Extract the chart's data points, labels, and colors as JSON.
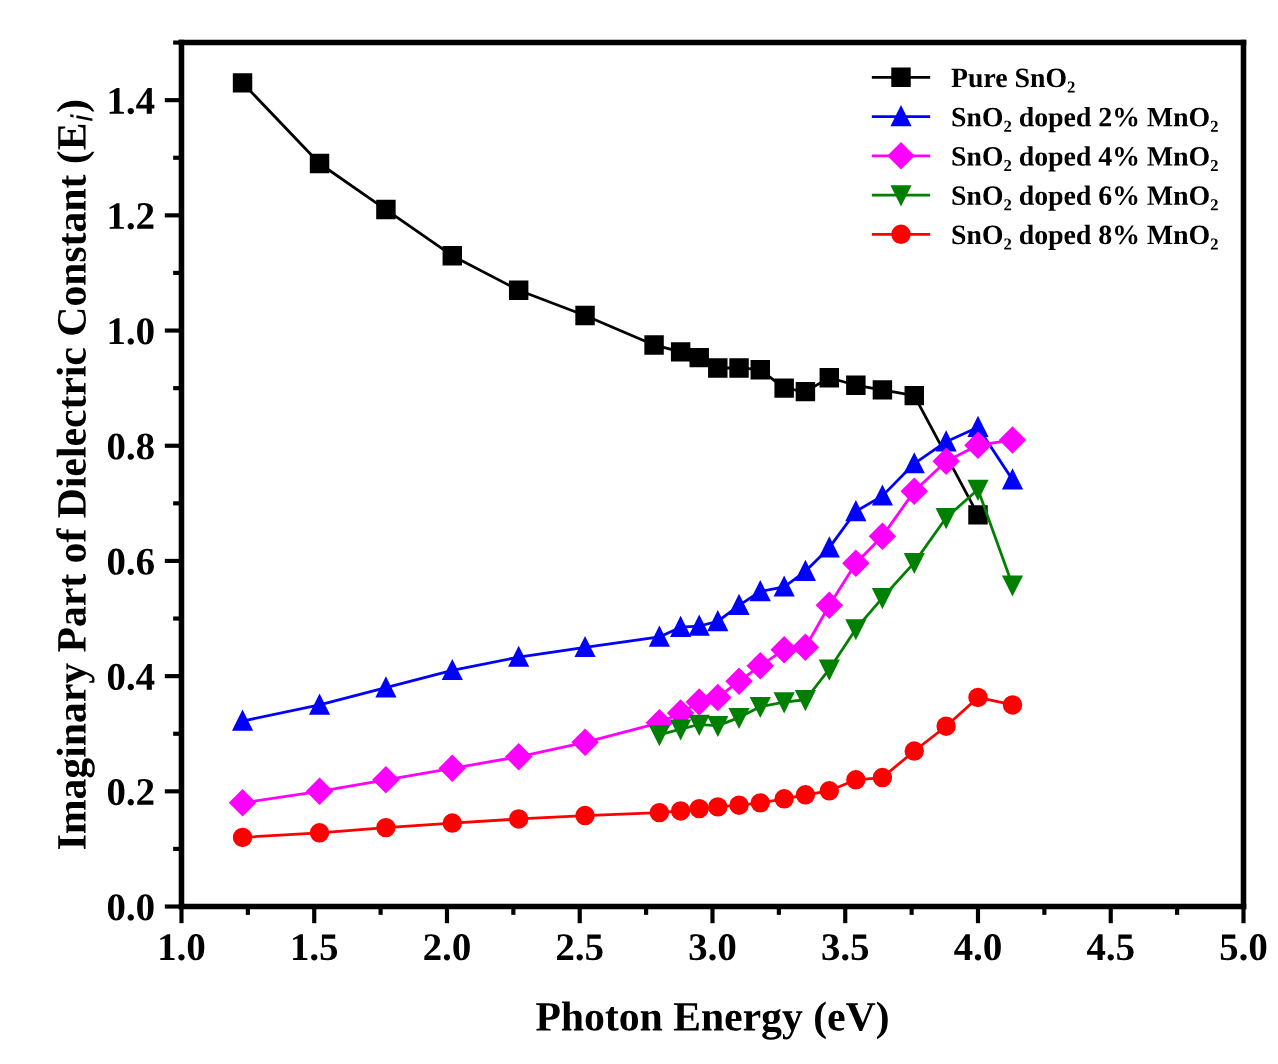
{
  "chart_data": {
    "type": "line",
    "xlabel": "Photon Energy (eV)",
    "ylabel": "Imaginary Part of Dielectric Constant (E$_{i}$)",
    "xlim": [
      1.0,
      5.0
    ],
    "ylim": [
      0,
      1.5
    ],
    "xticks": [
      {
        "value": 1,
        "label": "1.0"
      },
      1.5,
      {
        "value": 2,
        "label": "2.0"
      },
      2.5,
      {
        "value": 3,
        "label": "3.0"
      },
      3.5,
      {
        "value": 4,
        "label": "4.0"
      },
      4.5,
      {
        "value": 5,
        "label": "5.0"
      }
    ],
    "yticks": [
      {
        "value": 0,
        "label": "0.0"
      },
      0.2,
      0.4,
      0.6,
      0.8,
      {
        "value": 1,
        "label": "1.0"
      },
      1.2,
      1.4
    ],
    "grid": false,
    "legend": "top right",
    "line_style": "solid",
    "series": [
      {
        "name": "Pure SnO₂",
        "color": "#000000",
        "marker": "square",
        "x": [
          1.23,
          1.52,
          1.77,
          2.02,
          2.27,
          2.52,
          2.78,
          2.88,
          2.95,
          3.02,
          3.1,
          3.18,
          3.27,
          3.35,
          3.44,
          3.54,
          3.64,
          3.76,
          4.0
        ],
        "values": [
          1.43,
          1.29,
          1.21,
          1.13,
          1.07,
          1.026,
          0.975,
          0.963,
          0.953,
          0.935,
          0.935,
          0.932,
          0.9,
          0.894,
          0.918,
          0.905,
          0.897,
          0.887,
          0.68
        ]
      },
      {
        "name": "SnO₂ doped 2% MnO₂",
        "color": "#0000ff",
        "marker": "triangle",
        "x": [
          1.23,
          1.52,
          1.77,
          2.02,
          2.27,
          2.52,
          2.8,
          2.88,
          2.95,
          3.02,
          3.1,
          3.18,
          3.27,
          3.35,
          3.44,
          3.54,
          3.64,
          3.76,
          3.88,
          4.0,
          4.13
        ],
        "values": [
          0.322,
          0.35,
          0.38,
          0.41,
          0.433,
          0.45,
          0.468,
          0.485,
          0.487,
          0.495,
          0.523,
          0.547,
          0.555,
          0.582,
          0.623,
          0.686,
          0.713,
          0.769,
          0.807,
          0.832,
          0.741
        ]
      },
      {
        "name": "SnO₂ doped 4% MnO₂",
        "color": "#ff00ff",
        "marker": "diamond",
        "x": [
          1.23,
          1.52,
          1.77,
          2.02,
          2.27,
          2.52,
          2.8,
          2.88,
          2.95,
          3.02,
          3.1,
          3.18,
          3.27,
          3.35,
          3.44,
          3.54,
          3.64,
          3.76,
          3.88,
          4.0,
          4.13
        ],
        "values": [
          0.18,
          0.2,
          0.22,
          0.24,
          0.26,
          0.285,
          0.319,
          0.336,
          0.355,
          0.363,
          0.391,
          0.418,
          0.446,
          0.45,
          0.523,
          0.596,
          0.643,
          0.721,
          0.773,
          0.801,
          0.81
        ]
      },
      {
        "name": "SnO₂ doped 6% MnO₂",
        "color": "#008000",
        "marker": "triangle_down",
        "x": [
          2.8,
          2.88,
          2.95,
          3.02,
          3.1,
          3.18,
          3.27,
          3.35,
          3.44,
          3.54,
          3.64,
          3.76,
          3.88,
          4.0,
          4.13
        ],
        "values": [
          0.298,
          0.308,
          0.316,
          0.314,
          0.328,
          0.347,
          0.355,
          0.359,
          0.412,
          0.482,
          0.536,
          0.597,
          0.675,
          0.724,
          0.558
        ]
      },
      {
        "name": "SnO₂ doped 8% MnO₂",
        "color": "#ff0000",
        "marker": "circle",
        "x": [
          1.23,
          1.52,
          1.77,
          2.02,
          2.27,
          2.52,
          2.8,
          2.88,
          2.95,
          3.02,
          3.1,
          3.18,
          3.27,
          3.35,
          3.44,
          3.54,
          3.64,
          3.76,
          3.88,
          4.0,
          4.13
        ],
        "values": [
          0.12,
          0.128,
          0.137,
          0.145,
          0.152,
          0.158,
          0.163,
          0.166,
          0.17,
          0.173,
          0.176,
          0.18,
          0.187,
          0.194,
          0.201,
          0.22,
          0.224,
          0.27,
          0.313,
          0.363,
          0.35
        ]
      }
    ]
  }
}
